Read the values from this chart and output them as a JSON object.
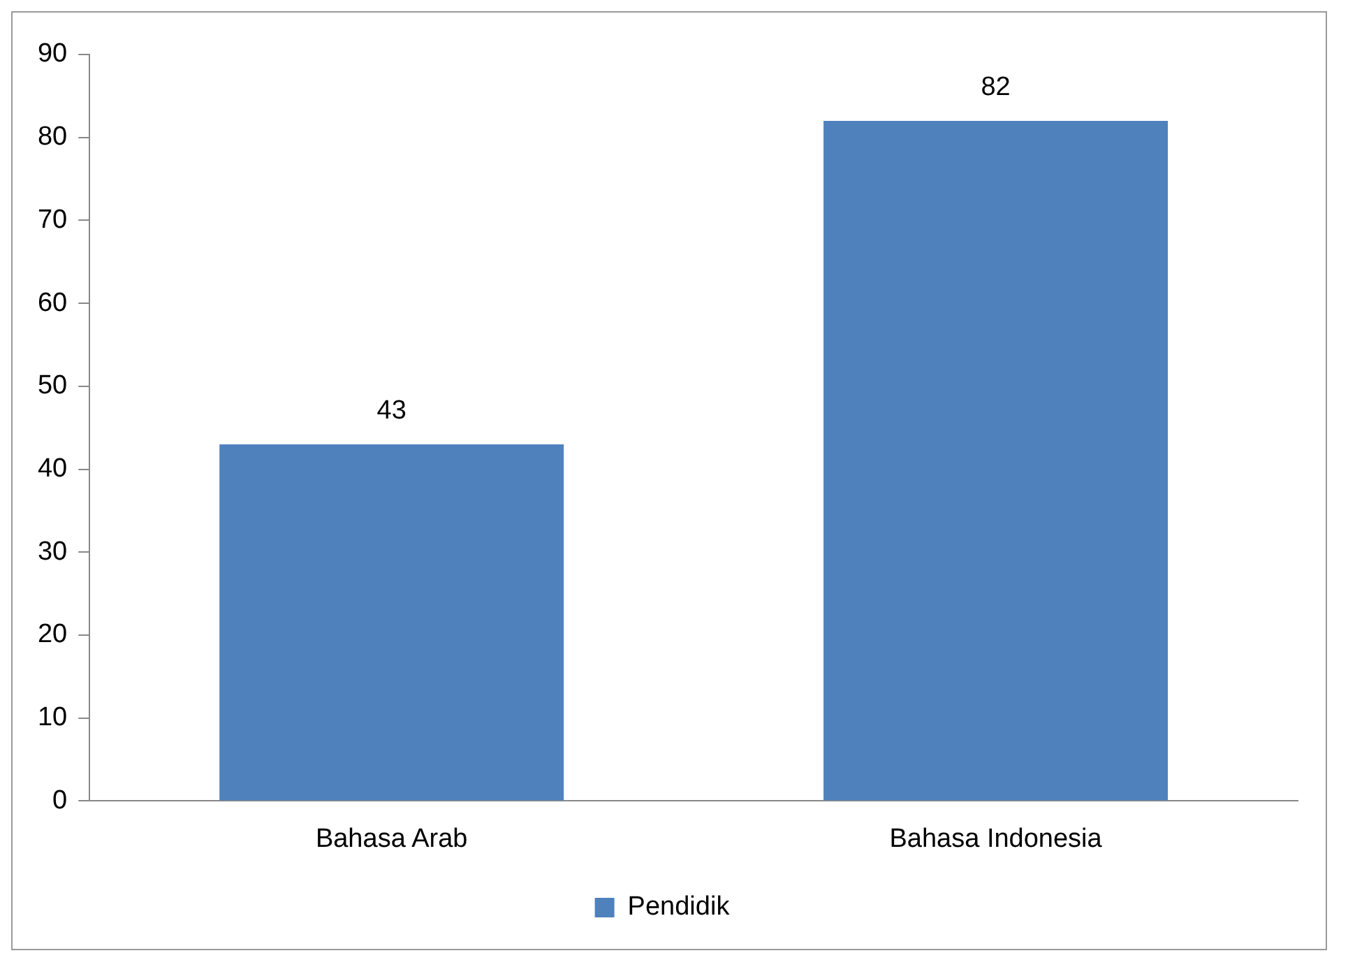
{
  "chart_data": {
    "type": "bar",
    "categories": [
      "Bahasa Arab",
      "Bahasa Indonesia"
    ],
    "series": [
      {
        "name": "Pendidik",
        "color": "#4f81bd",
        "values": [
          43,
          82
        ]
      }
    ],
    "ylim": [
      0,
      90
    ],
    "yticks": [
      0,
      10,
      20,
      30,
      40,
      50,
      60,
      70,
      80,
      90
    ],
    "grid": false,
    "legend": "bottom",
    "data_labels": true
  }
}
